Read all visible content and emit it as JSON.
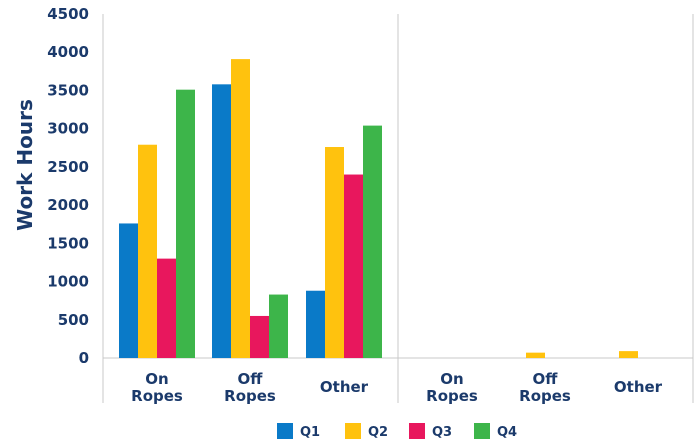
{
  "chart_data": {
    "type": "bar",
    "title": "",
    "xlabel": "",
    "ylabel": "Work Hours",
    "ylim": [
      0,
      4500
    ],
    "yticks": [
      "0",
      "500",
      "1000",
      "1500",
      "2000",
      "2500",
      "3000",
      "3500",
      "4000",
      "4500"
    ],
    "grid": false,
    "legend": "bottom",
    "groups": [
      {
        "categories": [
          [
            "On",
            "Ropes"
          ],
          [
            "Off",
            "Ropes"
          ],
          [
            "Other"
          ]
        ]
      },
      {
        "categories": [
          [
            "On",
            "Ropes"
          ],
          [
            "Off",
            "Ropes"
          ],
          [
            "Other"
          ]
        ]
      }
    ],
    "series": [
      {
        "name": "Q1",
        "color": "#0a7ac8",
        "values": [
          1760,
          3580,
          880,
          0,
          0,
          0
        ]
      },
      {
        "name": "Q2",
        "color": "#ffc20e",
        "values": [
          2790,
          3910,
          2760,
          0,
          70,
          90
        ]
      },
      {
        "name": "Q3",
        "color": "#e8175d",
        "values": [
          1300,
          550,
          2400,
          0,
          0,
          0
        ]
      },
      {
        "name": "Q4",
        "color": "#3db54a",
        "values": [
          3510,
          830,
          3040,
          0,
          0,
          0
        ]
      }
    ]
  }
}
